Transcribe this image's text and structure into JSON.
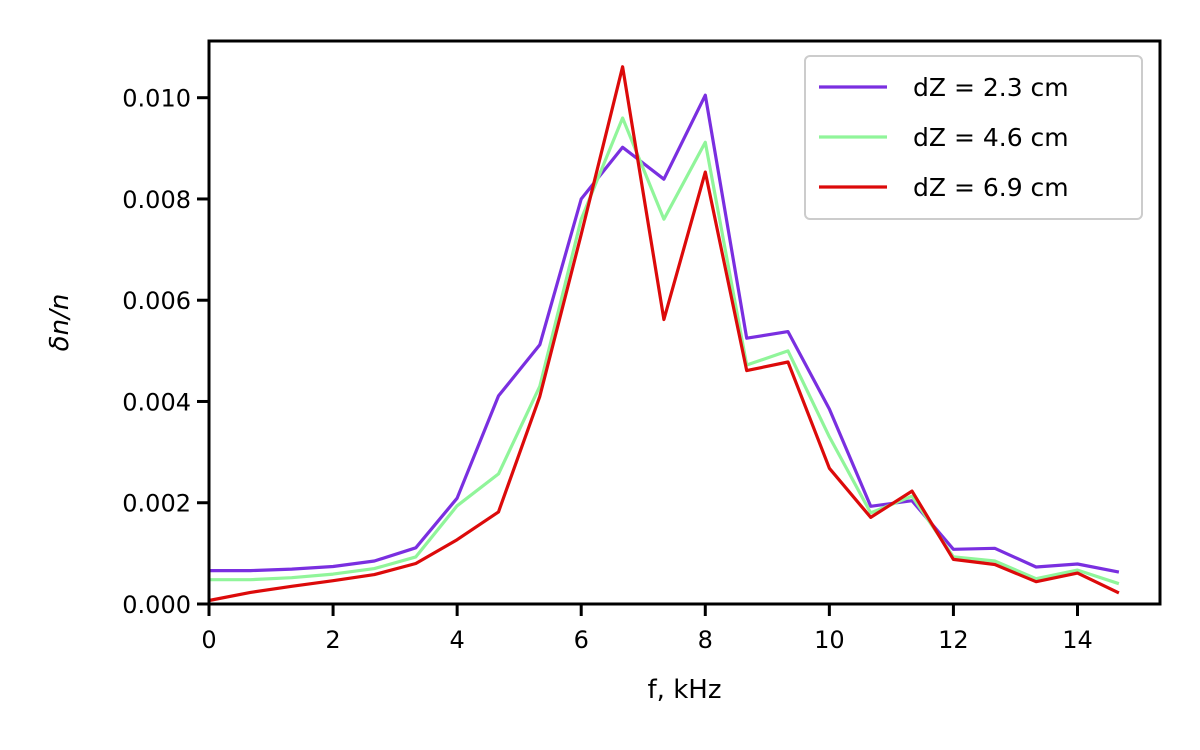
{
  "chart_data": {
    "type": "line",
    "xlabel": "f, kHz",
    "ylabel": "δn/n",
    "xlim": [
      0,
      15.33
    ],
    "ylim": [
      0,
      0.01112
    ],
    "xticks": [
      0,
      2,
      4,
      6,
      8,
      10,
      12,
      14
    ],
    "yticks": [
      0.0,
      0.002,
      0.004,
      0.006,
      0.008,
      0.01
    ],
    "xtick_labels": [
      "0",
      "2",
      "4",
      "6",
      "8",
      "10",
      "12",
      "14"
    ],
    "ytick_labels": [
      "0.000",
      "0.002",
      "0.004",
      "0.006",
      "0.008",
      "0.010"
    ],
    "grid": false,
    "legend_position": "top-right",
    "x": [
      0,
      0.667,
      1.333,
      2.0,
      2.667,
      3.333,
      4.0,
      4.667,
      5.333,
      6.0,
      6.667,
      7.333,
      8.0,
      8.667,
      9.333,
      10.0,
      10.667,
      11.333,
      12.0,
      12.667,
      13.333,
      14.0,
      14.667
    ],
    "series": [
      {
        "name": "dZ = 2.3 cm",
        "color": "#7a2fe0",
        "values": [
          0.00066,
          0.00066,
          0.00069,
          0.00074,
          0.00085,
          0.00111,
          0.00209,
          0.00411,
          0.00512,
          0.008,
          0.00902,
          0.00839,
          0.01005,
          0.00525,
          0.00538,
          0.00385,
          0.00193,
          0.00204,
          0.00108,
          0.0011,
          0.00073,
          0.00079,
          0.00063
        ]
      },
      {
        "name": "dZ = 4.6 cm",
        "color": "#90f59a",
        "values": [
          0.00048,
          0.00048,
          0.00052,
          0.00059,
          0.0007,
          0.00093,
          0.00194,
          0.00257,
          0.0043,
          0.0076,
          0.0096,
          0.0076,
          0.00912,
          0.00472,
          0.005,
          0.0033,
          0.0018,
          0.00213,
          0.00093,
          0.00085,
          0.0005,
          0.00067,
          0.0004
        ]
      },
      {
        "name": "dZ = 6.9 cm",
        "color": "#dc0a0a",
        "values": [
          7e-05,
          0.00023,
          0.00035,
          0.00046,
          0.00058,
          0.0008,
          0.00127,
          0.00182,
          0.0041,
          0.0073,
          0.01061,
          0.00562,
          0.00853,
          0.00461,
          0.00478,
          0.00268,
          0.00171,
          0.00223,
          0.00088,
          0.00078,
          0.00044,
          0.00061,
          0.00022
        ]
      }
    ]
  }
}
